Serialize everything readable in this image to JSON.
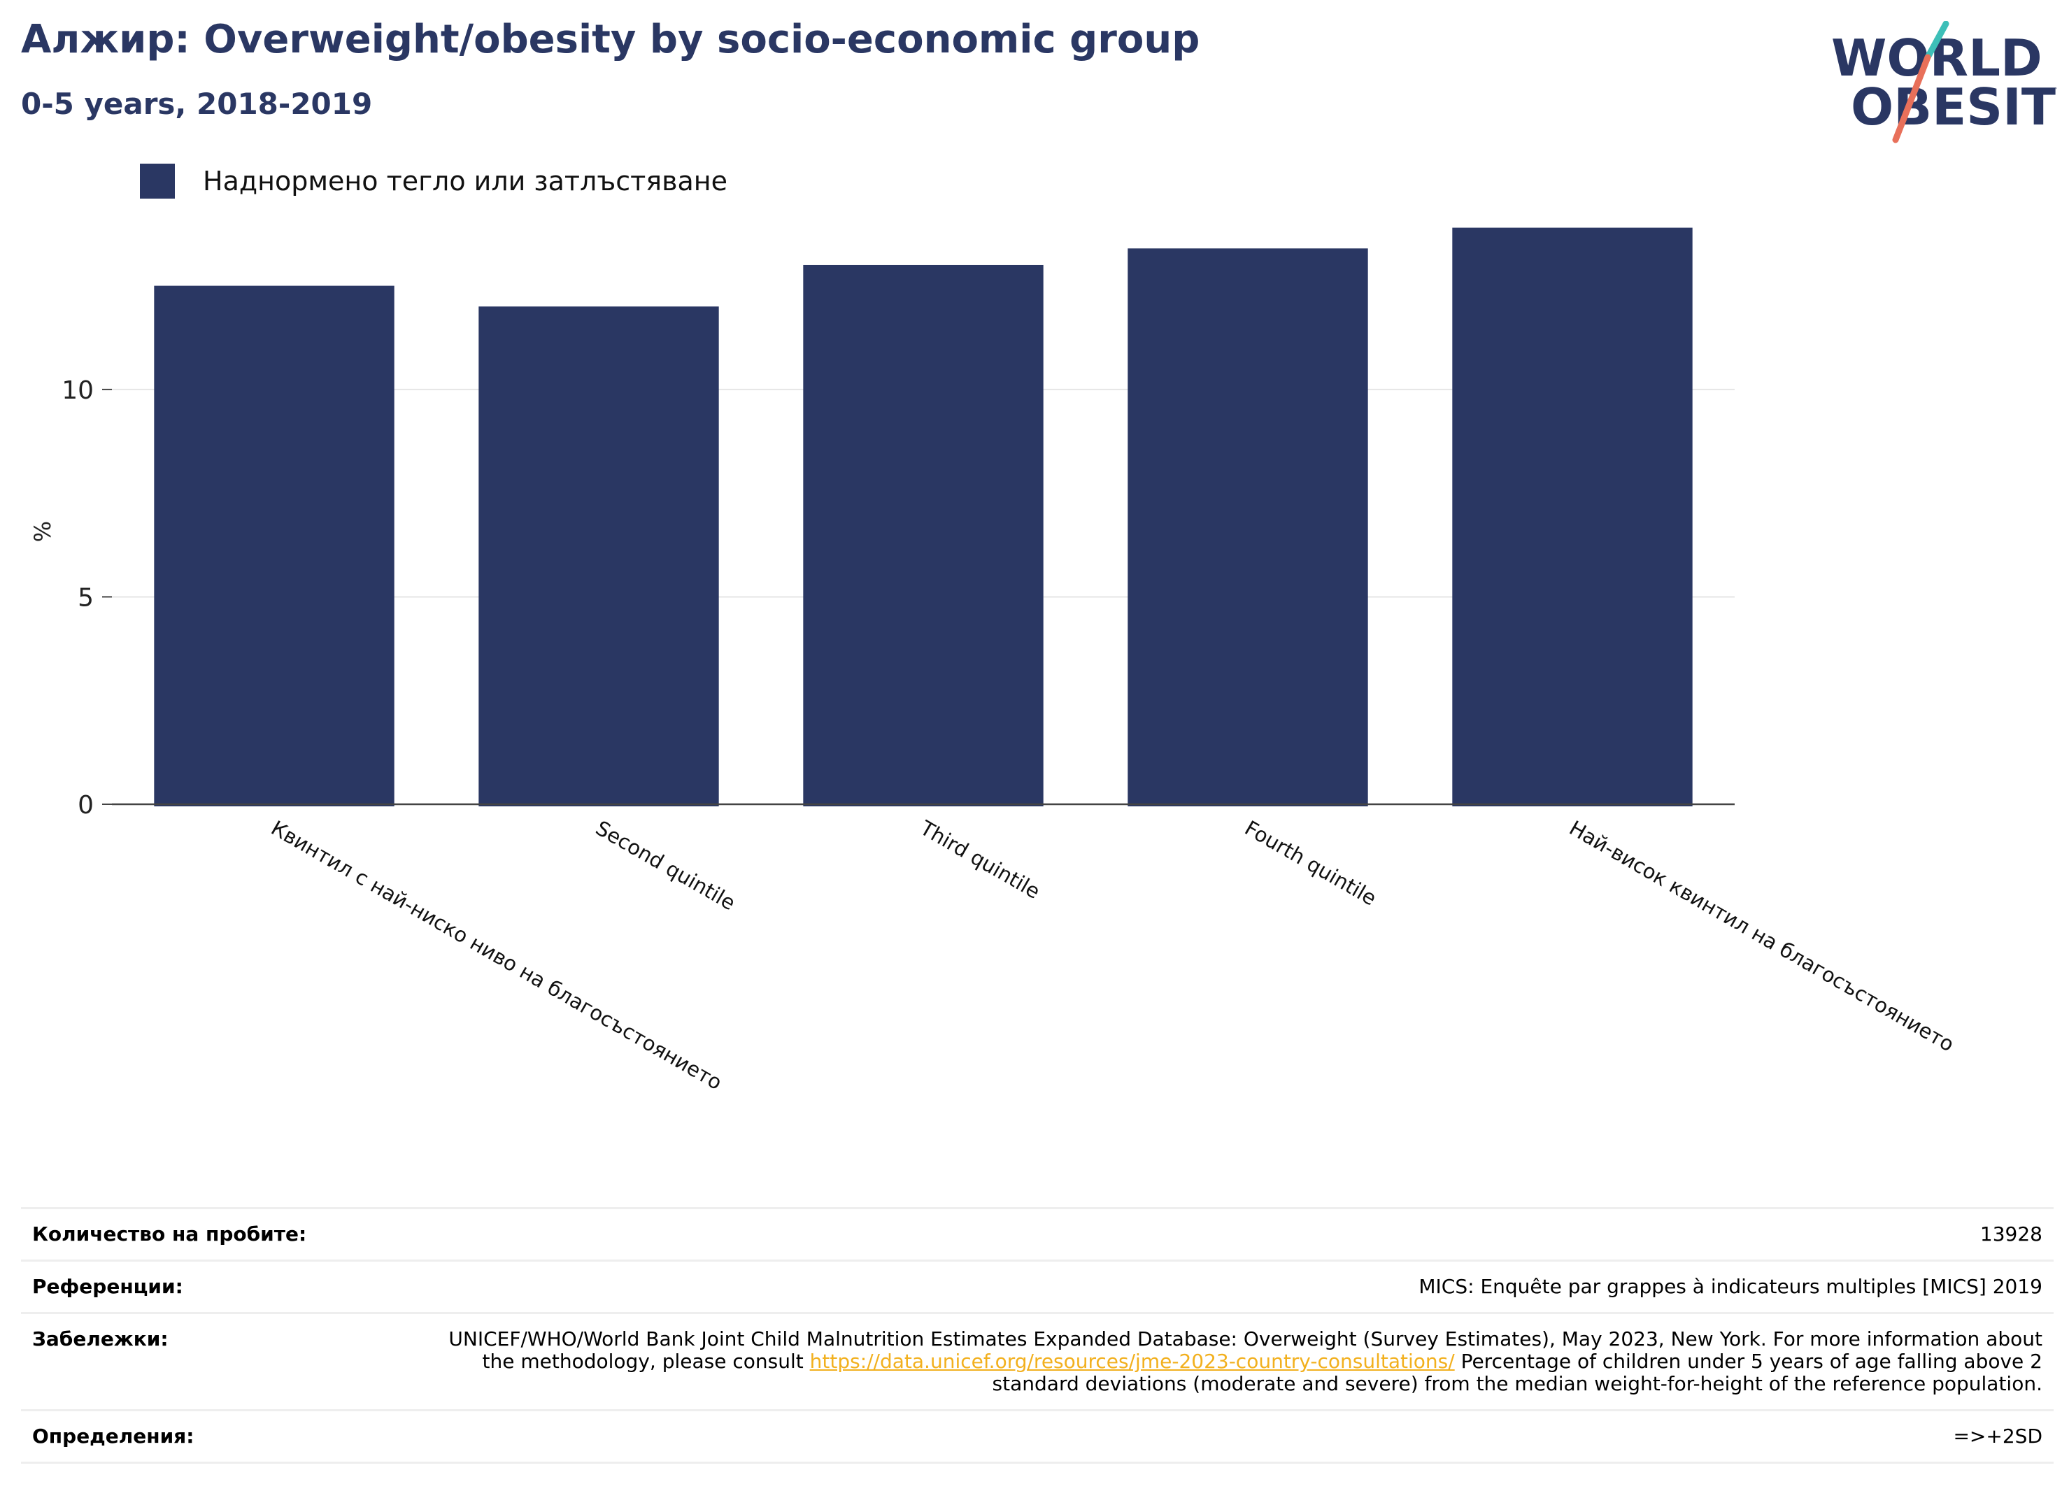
{
  "header": {
    "title": "Алжир: Overweight/obesity by socio-economic group",
    "subtitle": "0-5 years, 2018-2019"
  },
  "logo": {
    "line1": "WORLD",
    "line2": "OBESITY",
    "slash_top_color": "#3dbfb8",
    "slash_bottom_color": "#e8705a",
    "text_color": "#2a3763"
  },
  "chart_data": {
    "type": "bar",
    "categories": [
      "Квинтил с най-ниско ниво на благосъстоянието",
      "Second quintile",
      "Third quintile",
      "Fourth quintile",
      "Най-висок квинтил на благосъстоянието"
    ],
    "series": [
      {
        "name": "Наднормено тегло или затлъстяване",
        "values": [
          12.5,
          12.0,
          13.0,
          13.4,
          13.9
        ],
        "color": "#2a3763"
      }
    ],
    "ylabel": "%",
    "ylim": [
      0,
      14.5
    ],
    "yticks": [
      0,
      5,
      10
    ],
    "grid": true,
    "legend_position": "top-left"
  },
  "info": {
    "sample_label": "Количество на пробите:",
    "sample_value": "13928",
    "references_label": "Референции:",
    "references_value": "MICS: Enquête par grappes à indicateurs multiples [MICS] 2019",
    "notes_label": "Забележки:",
    "notes_before": "UNICEF/WHO/World Bank Joint Child Malnutrition Estimates Expanded Database: Overweight (Survey Estimates), May 2023, New York. For more information about the methodology, please consult ",
    "notes_link": "https://data.unicef.org/resources/jme-2023-country-consultations/",
    "notes_after": " Percentage of children under 5 years of age falling above 2 standard deviations (moderate and severe) from the median weight-for-height of the reference population.",
    "definitions_label": "Определения:",
    "definitions_value": "=>+2SD"
  }
}
